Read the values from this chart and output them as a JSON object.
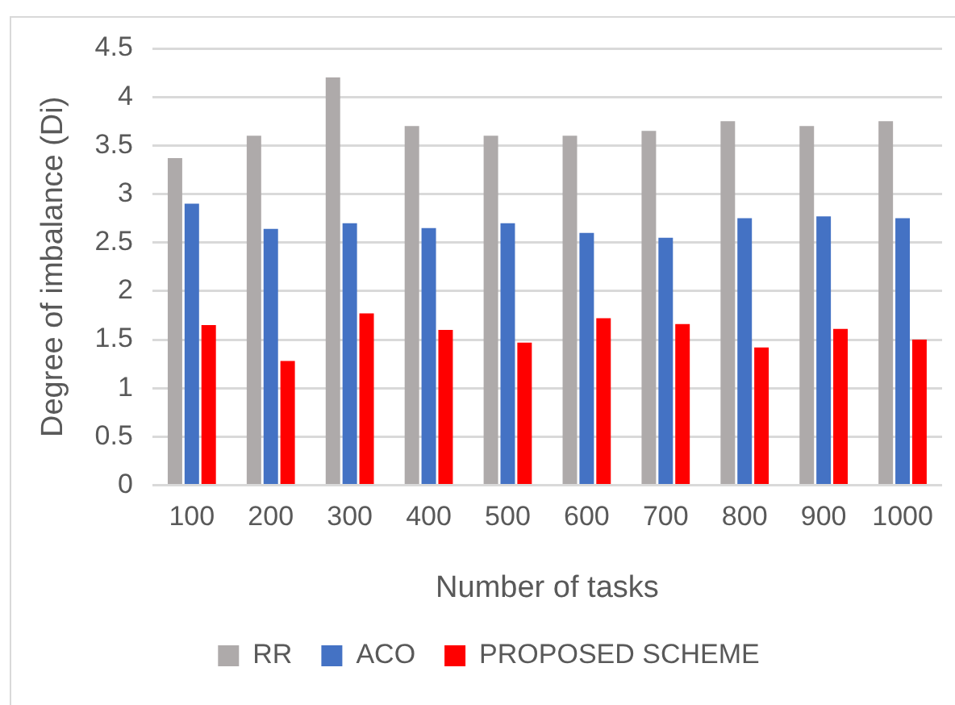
{
  "chart_data": {
    "type": "bar",
    "xlabel": "Number of tasks",
    "ylabel": "Degree of imbalance (Di)",
    "categories": [
      "100",
      "200",
      "300",
      "400",
      "500",
      "600",
      "700",
      "800",
      "900",
      "1000"
    ],
    "series": [
      {
        "name": "RR",
        "color": "#aeaaaa",
        "values": [
          3.37,
          3.6,
          4.2,
          3.7,
          3.6,
          3.6,
          3.65,
          3.75,
          3.7,
          3.75
        ]
      },
      {
        "name": "ACO",
        "color": "#4472c4",
        "values": [
          2.9,
          2.64,
          2.7,
          2.65,
          2.7,
          2.6,
          2.55,
          2.75,
          2.77,
          2.75
        ]
      },
      {
        "name": "PROPOSED SCHEME",
        "color": "#ff0000",
        "values": [
          1.65,
          1.28,
          1.77,
          1.6,
          1.47,
          1.72,
          1.66,
          1.42,
          1.61,
          1.5
        ]
      }
    ],
    "ylim": [
      0,
      4.5
    ],
    "yticks": [
      0,
      0.5,
      1,
      1.5,
      2,
      2.5,
      3,
      3.5,
      4,
      4.5
    ],
    "grid": "y",
    "legend": "bottom"
  }
}
